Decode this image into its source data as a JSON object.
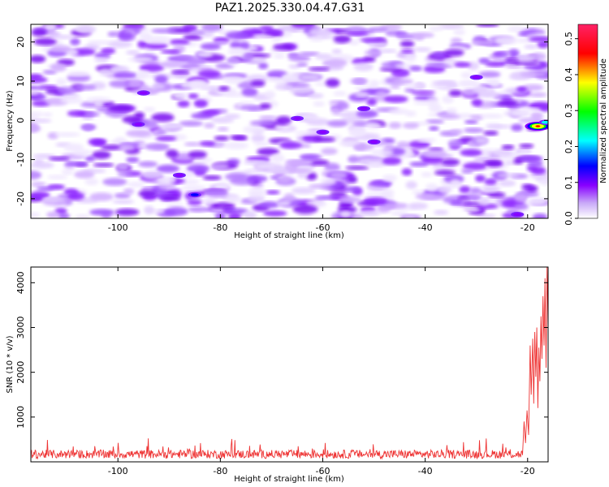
{
  "title": "PAZ1.2025.330.04.47.G31",
  "chart_data": [
    {
      "type": "heatmap",
      "name": "spectrogram",
      "xlabel": "Height of straight line (km)",
      "ylabel": "Frequency (Hz)",
      "xlim": [
        -117,
        -16
      ],
      "ylim": [
        -25,
        24.5
      ],
      "xticks": [
        -100,
        -80,
        -60,
        -40,
        -20
      ],
      "yticks": [
        20,
        10,
        0,
        -10,
        -20
      ],
      "colorbar": {
        "label": "Normalized spectral amplitude",
        "range": [
          0,
          0.54
        ],
        "ticks": [
          0.0,
          0.1,
          0.2,
          0.3,
          0.4,
          0.5
        ],
        "colors": [
          "#ffffff",
          "#c8a8f8",
          "#8800ff",
          "#0000ff",
          "#00ffff",
          "#00ff00",
          "#ffff00",
          "#ff0000",
          "#ff2266"
        ]
      },
      "features": [
        {
          "x": -18,
          "freq": -1.5,
          "value": 0.52
        },
        {
          "x": -16.5,
          "freq": -0.5,
          "value": 0.22
        },
        {
          "x": -85,
          "freq": -19,
          "value": 0.15
        },
        {
          "x": -88,
          "freq": -14,
          "value": 0.12
        },
        {
          "x": -65,
          "freq": 0.5,
          "value": 0.13
        },
        {
          "x": -60,
          "freq": -3,
          "value": 0.11
        },
        {
          "x": -52,
          "freq": 3,
          "value": 0.12
        },
        {
          "x": -50,
          "freq": -5.5,
          "value": 0.11
        },
        {
          "x": -95,
          "freq": 7,
          "value": 0.1
        },
        {
          "x": -96,
          "freq": -1,
          "value": 0.11
        },
        {
          "x": -30,
          "freq": 11,
          "value": 0.1
        },
        {
          "x": -22,
          "freq": -24,
          "value": 0.12
        }
      ]
    },
    {
      "type": "line",
      "name": "snr",
      "xlabel": "Height of straight line (km)",
      "ylabel": "SNR (10 * v/v)",
      "xlim": [
        -117,
        -16
      ],
      "ylim": [
        0,
        4350
      ],
      "xticks": [
        -100,
        -80,
        -60,
        -40,
        -20
      ],
      "yticks": [
        1000,
        2000,
        3000,
        4000
      ],
      "color": "#ee3333",
      "baseline": {
        "x_range": [
          -117,
          -21
        ],
        "typical": 170,
        "spread": 120
      },
      "series": [
        {
          "name": "SNR",
          "x": [
            -21.0,
            -20.7,
            -20.4,
            -20.1,
            -19.8,
            -19.5,
            -19.3,
            -19.0,
            -18.8,
            -18.6,
            -18.4,
            -18.2,
            -18.0,
            -17.8,
            -17.6,
            -17.4,
            -17.2,
            -17.0,
            -16.8,
            -16.6,
            -16.4,
            -16.2,
            -16.0
          ],
          "y": [
            150,
            900,
            420,
            1150,
            600,
            2600,
            1500,
            2750,
            1300,
            2900,
            1900,
            3000,
            1200,
            2550,
            1800,
            3250,
            2300,
            3700,
            2600,
            4100,
            2100,
            4350,
            3000
          ]
        }
      ]
    }
  ]
}
